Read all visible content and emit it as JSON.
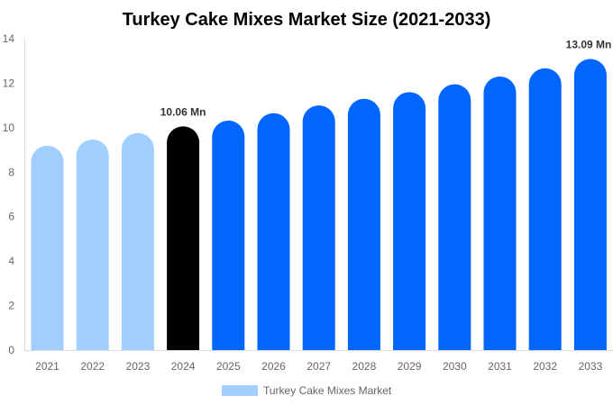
{
  "chart_data": {
    "type": "bar",
    "title": "Turkey Cake Mixes Market Size (2021-2033)",
    "xlabel": "",
    "ylabel": "",
    "ylim": [
      0,
      14
    ],
    "yticks": [
      0,
      2,
      4,
      6,
      8,
      10,
      12,
      14
    ],
    "grid": false,
    "legend_placement": "bottom",
    "categories": [
      "2021",
      "2022",
      "2023",
      "2024",
      "2025",
      "2026",
      "2027",
      "2028",
      "2029",
      "2030",
      "2031",
      "2032",
      "2033"
    ],
    "series": [
      {
        "name": "Turkey Cake Mixes Market",
        "values": [
          9.19,
          9.47,
          9.76,
          10.06,
          10.32,
          10.65,
          11.0,
          11.3,
          11.6,
          11.95,
          12.3,
          12.67,
          13.09
        ]
      }
    ],
    "bar_colors": [
      "#a0cfff",
      "#a0cfff",
      "#a0cfff",
      "#000000",
      "#0066ff",
      "#0066ff",
      "#0066ff",
      "#0066ff",
      "#0066ff",
      "#0066ff",
      "#0066ff",
      "#0066ff",
      "#0066ff"
    ],
    "legend_color": "#a0cfff",
    "data_labels": [
      {
        "index": 3,
        "text": "10.06 Mn"
      },
      {
        "index": 12,
        "text": "13.09 Mn"
      }
    ]
  }
}
